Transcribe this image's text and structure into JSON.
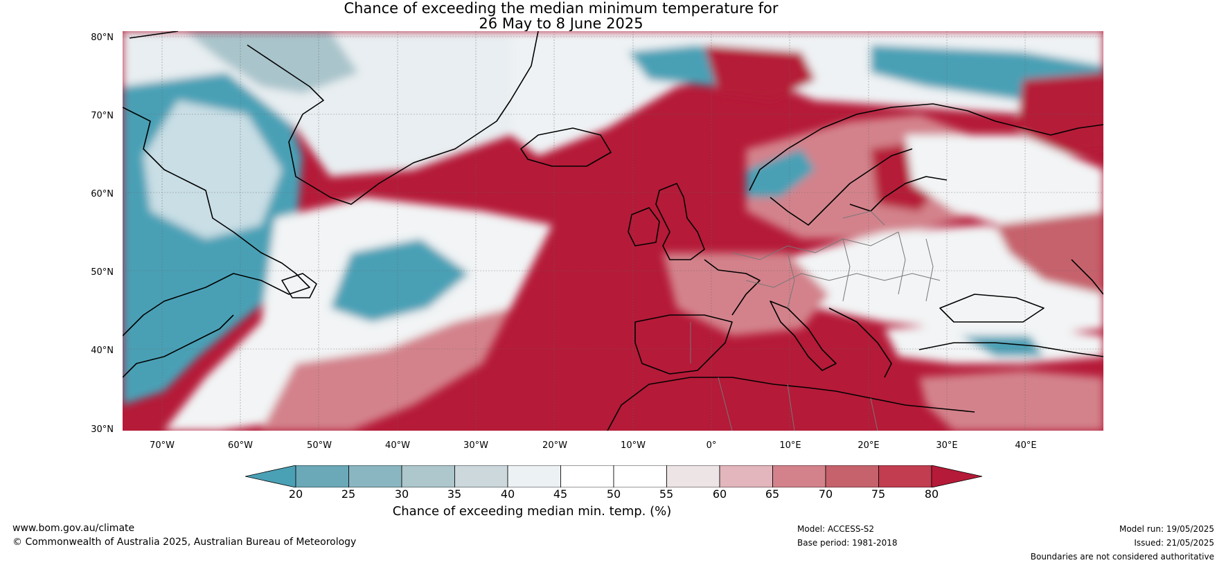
{
  "title": {
    "line1": "Chance of exceeding the median minimum temperature for",
    "line2": "26 May to 8 June 2025"
  },
  "map": {
    "lat_labels": [
      "80°N",
      "70°N",
      "60°N",
      "50°N",
      "40°N",
      "30°N"
    ],
    "lon_labels": [
      "70°W",
      "60°W",
      "50°W",
      "40°W",
      "30°W",
      "20°W",
      "10°W",
      "0°",
      "10°E",
      "20°E",
      "30°E",
      "40°E"
    ],
    "ocean_color": "#b51a38",
    "land_colors": {
      "cool": "#4aa0b5",
      "neutral": "#f2f4f5",
      "warm": "#d27a85"
    }
  },
  "colorbar": {
    "ticks": [
      "20",
      "25",
      "30",
      "35",
      "40",
      "45",
      "50",
      "55",
      "60",
      "65",
      "70",
      "75",
      "80"
    ],
    "colors": [
      "#4aa0b5",
      "#6ba8b8",
      "#8ab6c2",
      "#adc7cc",
      "#ccd8dc",
      "#ecf1f3",
      "#ffffff",
      "#ffffff",
      "#ede4e6",
      "#e2b6bc",
      "#d3828b",
      "#c6626c",
      "#c13d4f",
      "#b51a38"
    ],
    "label": "Chance of exceeding median min. temp. (%)"
  },
  "footer": {
    "website": "www.bom.gov.au/climate",
    "copyright": "© Commonwealth of Australia 2025, Australian Bureau of Meteorology",
    "model": "Model: ACCESS-S2",
    "base_period": "Base period: 1981-2018",
    "model_run": "Model run: 19/05/2025",
    "issued": "Issued: 21/05/2025",
    "disclaimer": "Boundaries are not considered authoritative"
  }
}
